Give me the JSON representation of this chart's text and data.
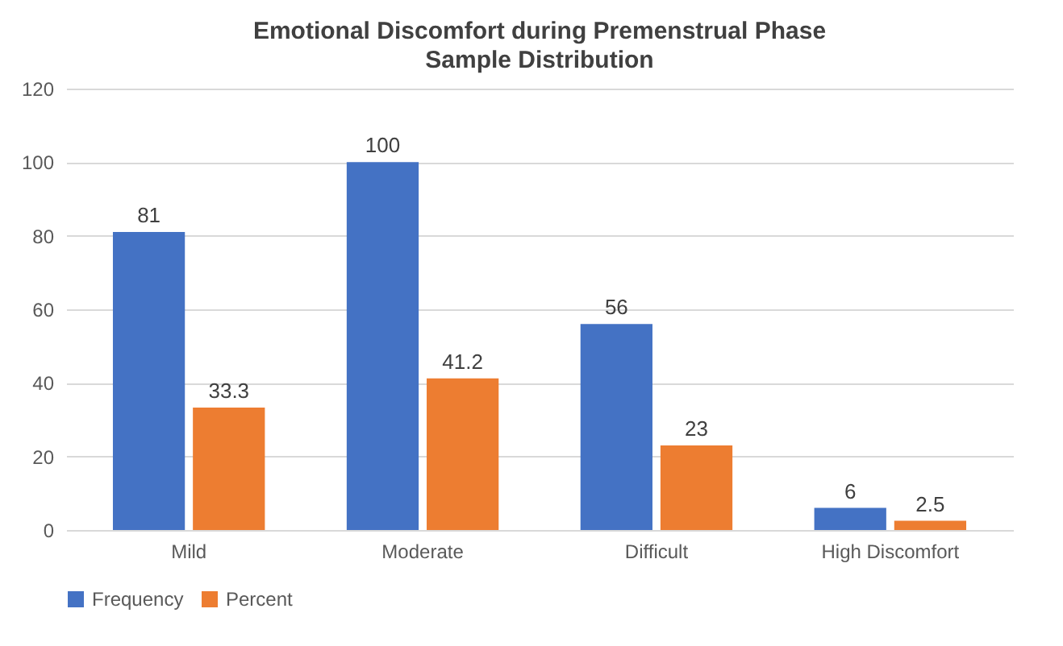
{
  "chart_data": {
    "type": "bar",
    "title": "Emotional Discomfort during Premenstrual Phase",
    "subtitle": "Sample Distribution",
    "categories": [
      "Mild",
      "Moderate",
      "Difficult",
      "High Discomfort"
    ],
    "series": [
      {
        "name": "Frequency",
        "color": "#4472c4",
        "values": [
          81,
          100,
          56,
          6
        ]
      },
      {
        "name": "Percent",
        "color": "#ed7d31",
        "values": [
          33.3,
          41.2,
          23,
          2.5
        ]
      }
    ],
    "ylim": [
      0,
      120
    ],
    "yticks": [
      0,
      20,
      40,
      60,
      80,
      100,
      120
    ],
    "grid": "y",
    "legend": "bottom",
    "data_labels": true
  }
}
